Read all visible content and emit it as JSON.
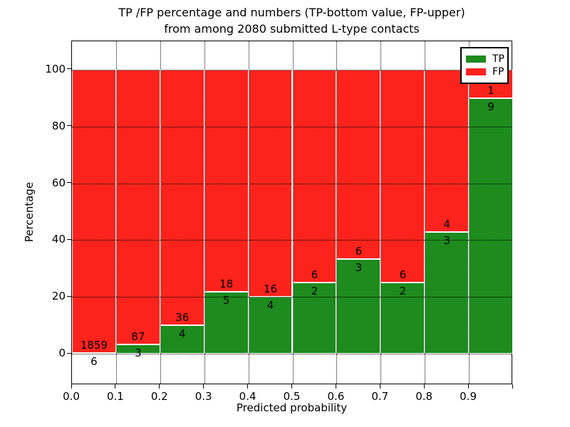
{
  "title": {
    "line1": "TP /FP percentage and numbers (TP-bottom value, FP-upper)",
    "line2": "from among 2080 submitted L-type contacts"
  },
  "axes": {
    "xlabel": "Predicted probability",
    "ylabel": "Percentage",
    "x_tick_labels": [
      "0.0",
      "0.1",
      "0.2",
      "0.3",
      "0.4",
      "0.5",
      "0.6",
      "0.7",
      "0.8",
      "0.9"
    ],
    "y_tick_labels": [
      "0",
      "20",
      "40",
      "60",
      "80",
      "100"
    ],
    "y_tick_values": [
      0,
      20,
      40,
      60,
      80,
      100
    ]
  },
  "legend": {
    "items": [
      {
        "label": "TP",
        "color": "#1d8b1d"
      },
      {
        "label": "FP",
        "color": "#fb231c"
      }
    ],
    "position": "upper right"
  },
  "colors": {
    "tp_green": "#1d8b1d",
    "fp_red": "#fb231c",
    "grid": "#000000",
    "bar_edge": "#ffffff"
  },
  "chart_data": {
    "type": "bar",
    "stacked": true,
    "normalized_to": 100,
    "title": "TP /FP percentage and numbers (TP-bottom value, FP-upper) from among 2080 submitted L-type contacts",
    "xlabel": "Predicted probability",
    "ylabel": "Percentage",
    "xlim": [
      0.0,
      1.0
    ],
    "ylim": [
      -11,
      110
    ],
    "grid": "dotted",
    "legend_position": "upper right",
    "bin_width": 0.1,
    "total_contacts": 2080,
    "categories": [
      "0.0-0.1",
      "0.1-0.2",
      "0.2-0.3",
      "0.3-0.4",
      "0.4-0.5",
      "0.5-0.6",
      "0.6-0.7",
      "0.7-0.8",
      "0.8-0.9",
      "0.9-1.0"
    ],
    "bin_starts": [
      0.0,
      0.1,
      0.2,
      0.3,
      0.4,
      0.5,
      0.6,
      0.7,
      0.8,
      0.9
    ],
    "series": [
      {
        "name": "TP",
        "color": "#1d8b1d",
        "counts": [
          6,
          3,
          4,
          5,
          4,
          2,
          3,
          2,
          3,
          9
        ],
        "pct": [
          0.32,
          3.33,
          10.0,
          21.74,
          20.0,
          25.0,
          33.33,
          25.0,
          42.86,
          90.0
        ]
      },
      {
        "name": "FP",
        "color": "#fb231c",
        "counts": [
          1859,
          87,
          36,
          18,
          16,
          6,
          6,
          6,
          4,
          1
        ],
        "pct": [
          99.68,
          96.67,
          90.0,
          78.26,
          80.0,
          75.0,
          66.67,
          75.0,
          57.14,
          10.0
        ]
      }
    ]
  }
}
